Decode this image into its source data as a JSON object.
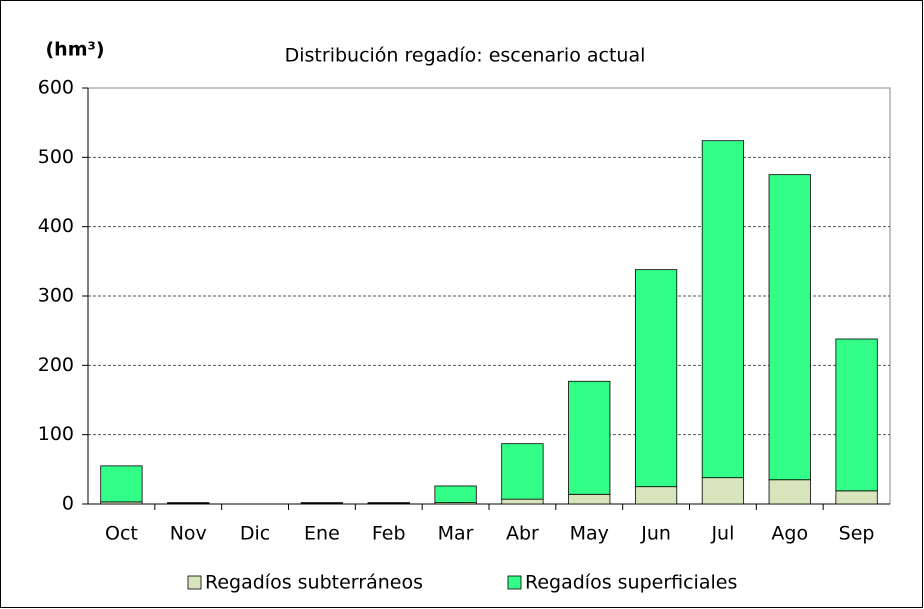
{
  "chart_data": {
    "type": "stacked_bar",
    "title": "Distribución regadío: escenario actual",
    "y_label": "(hm³)",
    "categories": [
      "Oct",
      "Nov",
      "Dic",
      "Ene",
      "Feb",
      "Mar",
      "Abr",
      "May",
      "Jun",
      "Jul",
      "Ago",
      "Sep"
    ],
    "series": [
      {
        "name": "Regadíos subterráneos",
        "color": "#d8e4bc",
        "values": [
          3,
          1,
          0,
          1,
          1,
          2,
          7,
          14,
          25,
          38,
          35,
          19
        ]
      },
      {
        "name": "Regadíos superficiales",
        "color": "#33ff88",
        "values": [
          52,
          1,
          0,
          1,
          1,
          24,
          80,
          163,
          313,
          486,
          440,
          219
        ]
      }
    ],
    "ylim": [
      0,
      600
    ],
    "yticks": [
      0,
      100,
      200,
      300,
      400,
      500,
      600
    ],
    "grid": true,
    "legend": "bottom"
  }
}
